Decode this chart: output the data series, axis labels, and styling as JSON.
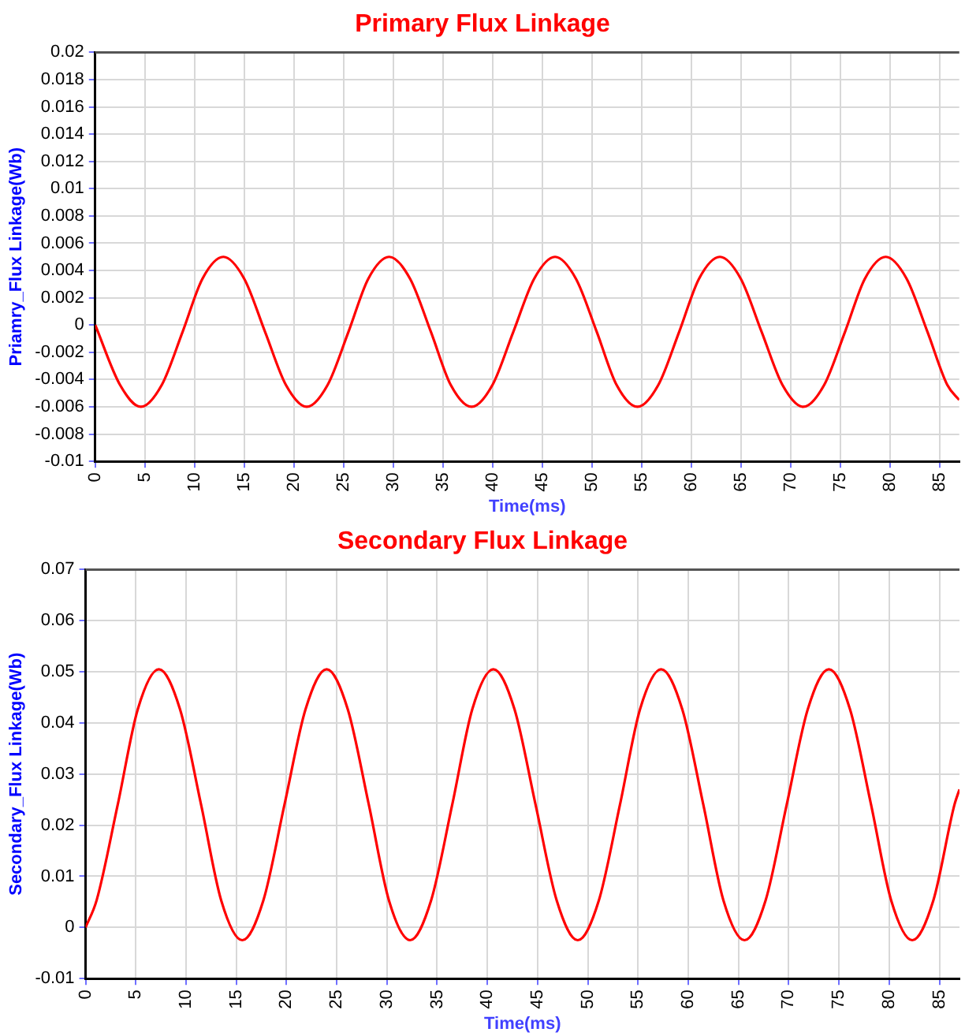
{
  "chart_data": [
    {
      "type": "line",
      "title": "Primary Flux Linkage",
      "xlabel": "Time(ms)",
      "ylabel": "Priamry_Flux Linkage(Wb)",
      "grid": true,
      "legend": false,
      "marker": "none",
      "line_style": "solid",
      "xlim": [
        0,
        87
      ],
      "xticks": [
        0,
        5,
        10,
        15,
        20,
        25,
        30,
        35,
        40,
        45,
        50,
        55,
        60,
        65,
        70,
        75,
        80,
        85
      ],
      "ylim": [
        -0.01,
        0.02
      ],
      "yticks": [
        -0.01,
        -0.008,
        -0.006,
        -0.004,
        -0.002,
        0,
        0.002,
        0.004,
        0.006,
        0.008,
        0.01,
        0.012,
        0.014,
        0.016,
        0.018,
        0.02
      ],
      "x": [
        0,
        2.5,
        4.6,
        6.7,
        8.8,
        10.8,
        12.9,
        15.0,
        17.1,
        19.2,
        21.3,
        23.4,
        25.5,
        27.5,
        29.6,
        31.7,
        33.8,
        35.8,
        37.9,
        40.0,
        42.1,
        44.2,
        46.3,
        48.4,
        50.5,
        52.5,
        54.6,
        56.7,
        58.8,
        60.8,
        62.9,
        65.0,
        67.1,
        69.2,
        71.3,
        73.4,
        75.5,
        77.5,
        79.6,
        81.7,
        83.8,
        85.8,
        87
      ],
      "series": [
        {
          "color": "#ff0000",
          "values": [
            0,
            -0.0044,
            -0.006,
            -0.0044,
            -0.0005,
            0.0034,
            0.005,
            0.0034,
            -0.0005,
            -0.0044,
            -0.006,
            -0.0044,
            -0.0005,
            0.0034,
            0.005,
            0.0034,
            -0.0005,
            -0.0044,
            -0.006,
            -0.0044,
            -0.0005,
            0.0034,
            0.005,
            0.0034,
            -0.0005,
            -0.0044,
            -0.006,
            -0.0044,
            -0.0005,
            0.0034,
            0.005,
            0.0034,
            -0.0005,
            -0.0044,
            -0.006,
            -0.0044,
            -0.0005,
            0.0034,
            0.005,
            0.0034,
            -0.0005,
            -0.0044,
            -0.0055
          ]
        }
      ]
    },
    {
      "type": "line",
      "title": "Secondary Flux Linkage",
      "xlabel": "Time(ms)",
      "ylabel": "Secondary_Flux Linkage(Wb)",
      "grid": true,
      "legend": false,
      "marker": "none",
      "line_style": "solid",
      "xlim": [
        0,
        87
      ],
      "xticks": [
        0,
        5,
        10,
        15,
        20,
        25,
        30,
        35,
        40,
        45,
        50,
        55,
        60,
        65,
        70,
        75,
        80,
        85
      ],
      "ylim": [
        -0.01,
        0.07
      ],
      "yticks": [
        -0.01,
        0,
        0.01,
        0.02,
        0.03,
        0.04,
        0.05,
        0.06,
        0.07
      ],
      "x": [
        0,
        1.1,
        3.2,
        5.2,
        7.3,
        9.4,
        11.5,
        13.5,
        15.6,
        17.7,
        19.8,
        21.9,
        24.0,
        26.1,
        28.2,
        30.2,
        32.3,
        34.4,
        36.5,
        38.5,
        40.6,
        42.7,
        44.8,
        46.9,
        49.0,
        51.1,
        53.2,
        55.2,
        57.3,
        59.4,
        61.5,
        63.5,
        65.6,
        67.7,
        69.8,
        71.9,
        74.0,
        76.1,
        78.2,
        80.2,
        82.3,
        84.4,
        86.5,
        87
      ],
      "series": [
        {
          "color": "#ff0000",
          "values": [
            0,
            0.0053,
            0.024,
            0.0427,
            0.0505,
            0.0427,
            0.024,
            0.0053,
            -0.0025,
            0.0053,
            0.024,
            0.0427,
            0.0505,
            0.0427,
            0.024,
            0.0053,
            -0.0025,
            0.0053,
            0.024,
            0.0427,
            0.0505,
            0.0427,
            0.024,
            0.0053,
            -0.0025,
            0.0053,
            0.024,
            0.0427,
            0.0505,
            0.0427,
            0.024,
            0.0053,
            -0.0025,
            0.0053,
            0.024,
            0.0427,
            0.0505,
            0.0427,
            0.024,
            0.0053,
            -0.0025,
            0.0053,
            0.024,
            0.027
          ]
        }
      ]
    }
  ]
}
